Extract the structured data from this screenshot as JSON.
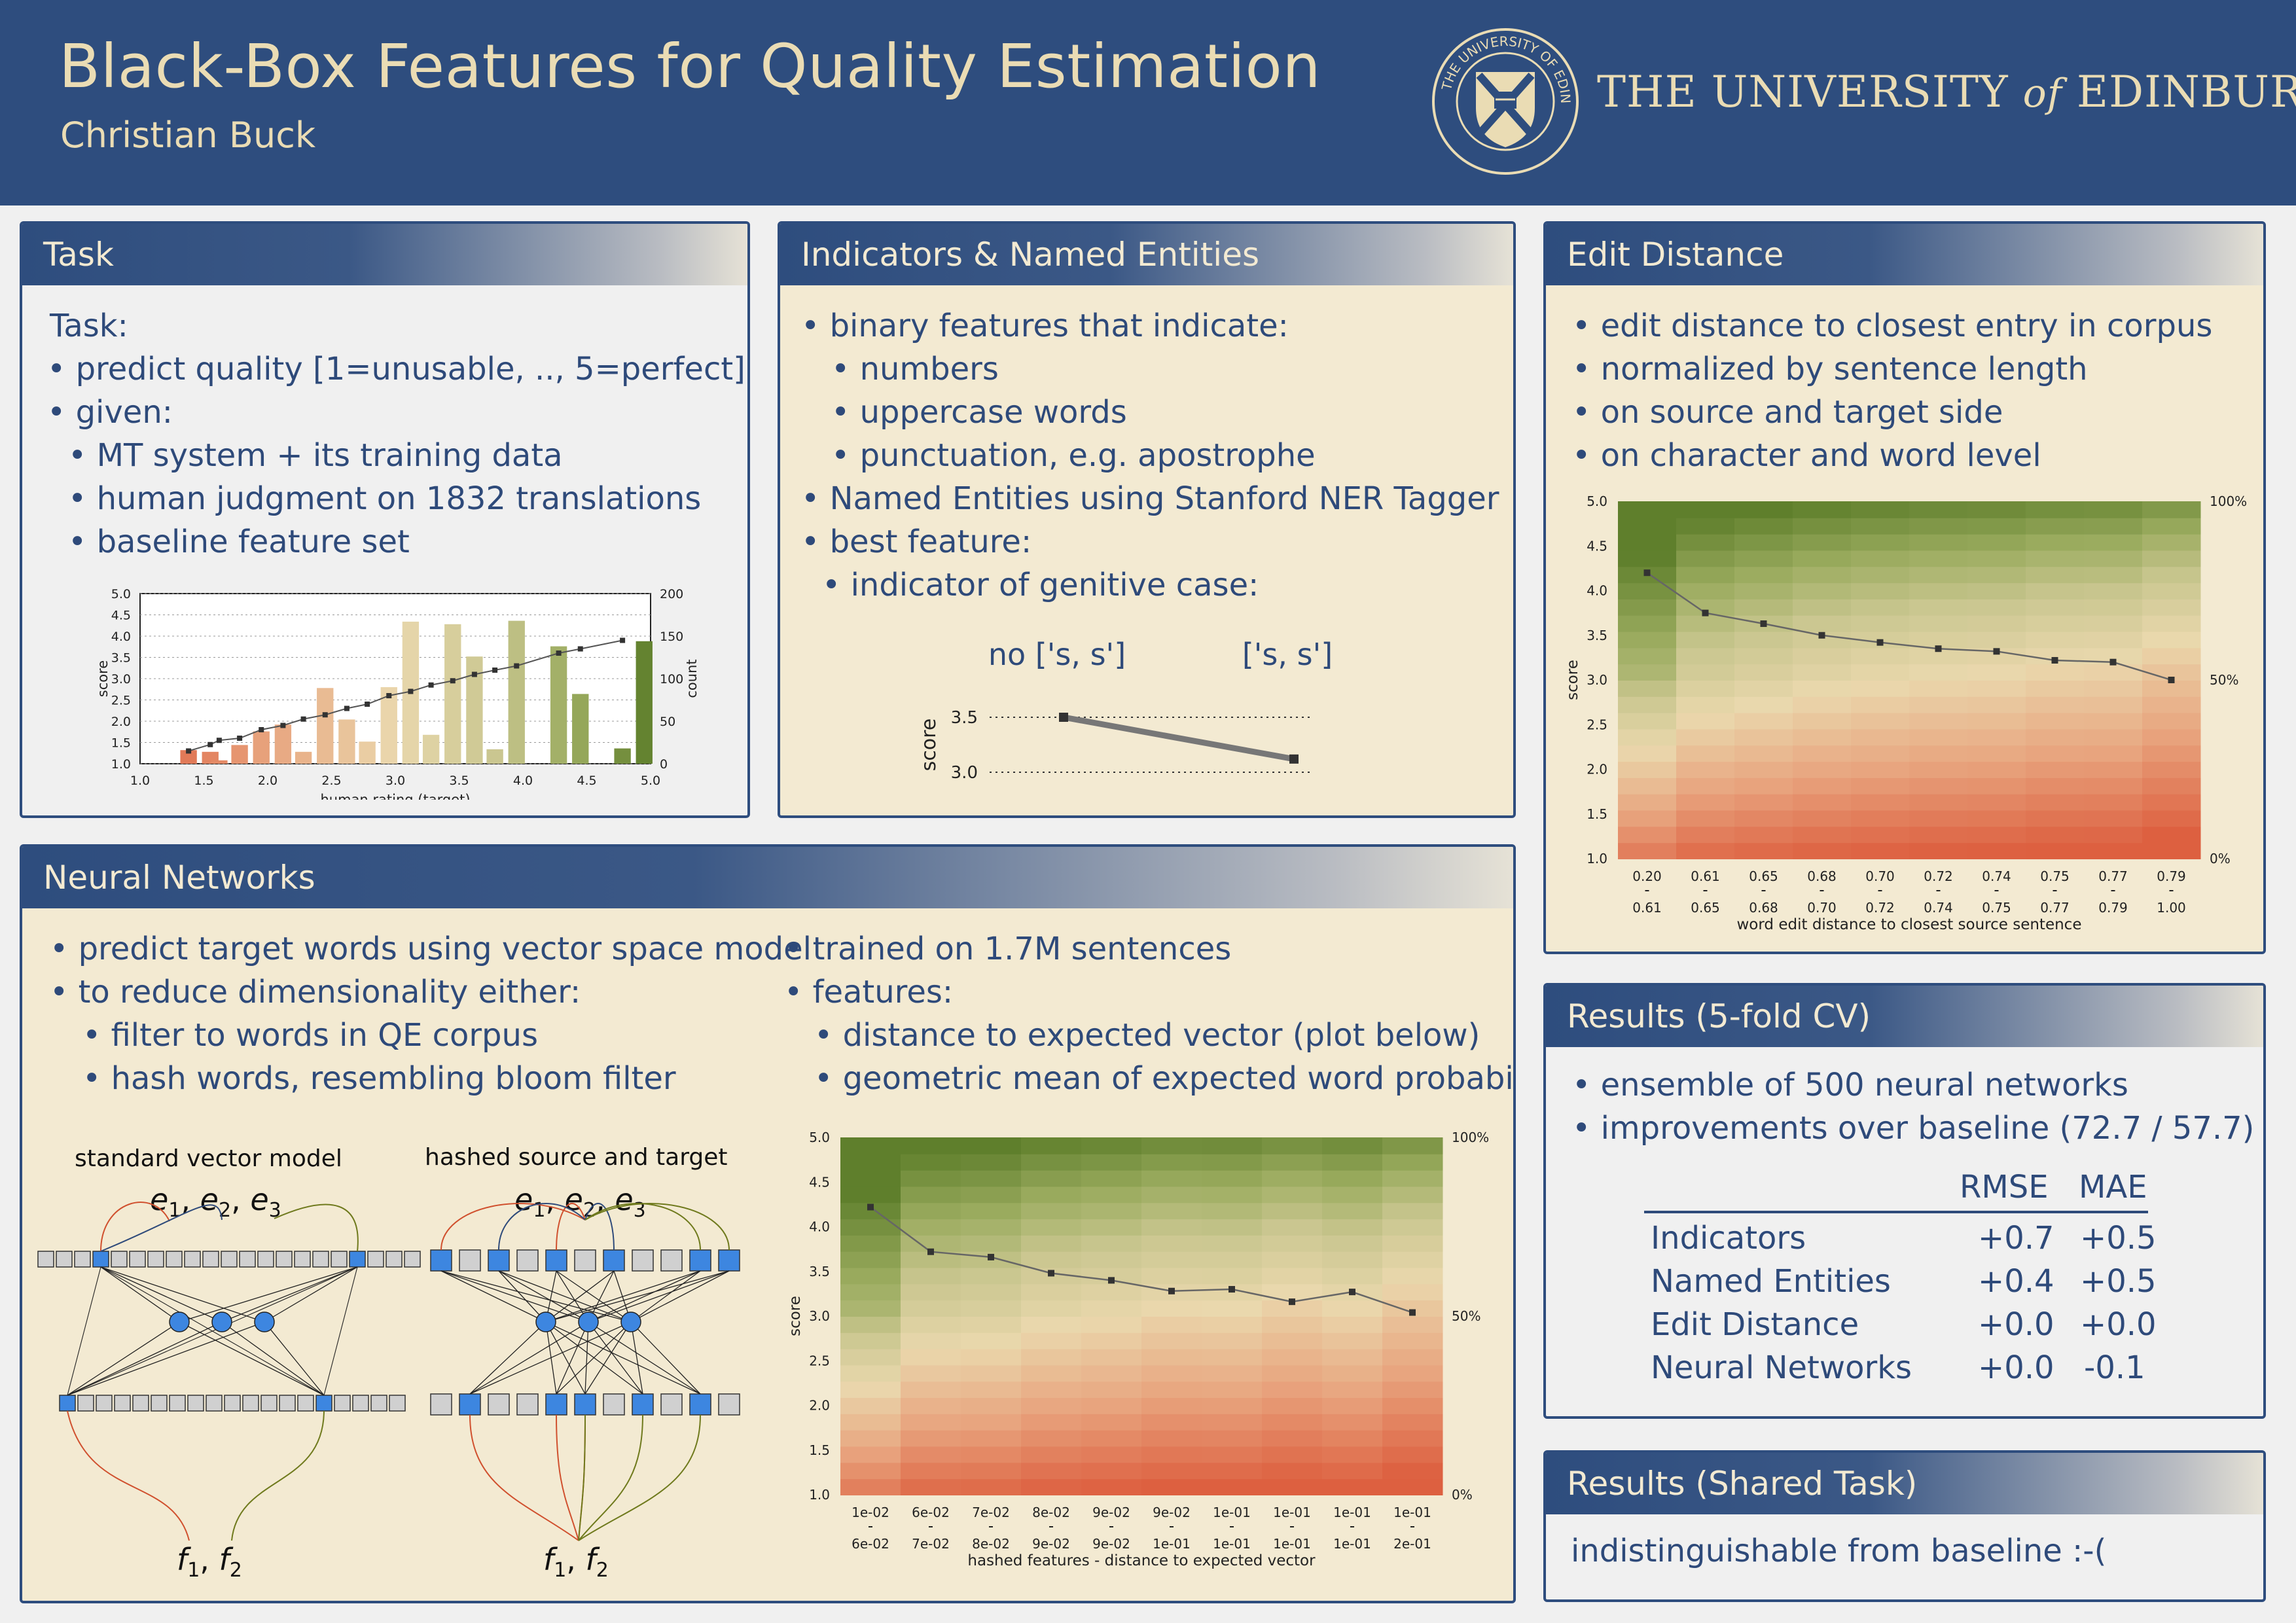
{
  "header": {
    "title": "Black-Box Features for Quality Estimation",
    "author": "Christian Buck",
    "university": "THE UNIVERSITY",
    "university_of": "of",
    "university_name": "EDINBURGH"
  },
  "colors": {
    "header_bg": "#2e4d7e",
    "header_text": "#eadcb4",
    "panel_tan": "#f3ead2",
    "text": "#2e4a7a"
  },
  "task": {
    "heading": "Task",
    "lines": [
      "Task:",
      "• predict quality [1=unusable, .., 5=perfect]",
      "• given:",
      "• MT system + its training data",
      "• human judgment on 1832 translations",
      "• baseline feature set"
    ]
  },
  "indicators": {
    "heading": "Indicators & Named Entities",
    "lines": [
      "• binary features that indicate:",
      "• numbers",
      "• uppercase words",
      "• punctuation, e.g. apostrophe",
      "• Named Entities using Stanford NER Tagger",
      "• best feature:",
      "• indicator of genitive case:"
    ]
  },
  "edit": {
    "heading": "Edit Distance",
    "lines": [
      "• edit distance to closest  entry in corpus",
      "• normalized by sentence length",
      "• on source and target side",
      "• on character and word level"
    ]
  },
  "nn": {
    "heading": "Neural Networks",
    "left_lines": [
      "• predict target words using vector space model",
      "• to reduce dimensionality either:",
      "• filter to words in QE corpus",
      "• hash words, resembling bloom filter"
    ],
    "right_lines": [
      "• trained on 1.7M sentences",
      "• features:",
      "• distance to expected vector (plot below)",
      "• geometric mean of expected word probabilities"
    ],
    "diagram_left_title": "standard vector model",
    "diagram_right_title": "hashed source and target",
    "e_label": "e",
    "f_label": "f",
    "sub1": "1",
    "sub2": "2",
    "sub3": "3",
    "comma": ", "
  },
  "results_cv": {
    "heading": "Results (5-fold CV)",
    "lines": [
      "• ensemble of 500 neural networks",
      "• improvements over baseline (72.7 / 57.7)"
    ],
    "col_rmse": "RMSE",
    "col_mae": "MAE",
    "rows": [
      {
        "name": "Indicators",
        "rmse": "+0.7",
        "mae": "+0.5"
      },
      {
        "name": "Named Entities",
        "rmse": "+0.4",
        "mae": "+0.5"
      },
      {
        "name": "Edit Distance",
        "rmse": "+0.0",
        "mae": "+0.0"
      },
      {
        "name": "Neural Networks",
        "rmse": "+0.0",
        "mae": "-0.1"
      }
    ]
  },
  "results_shared": {
    "heading": "Results (Shared Task)",
    "text": "indistinguishable from baseline :-("
  },
  "chart_data": [
    {
      "id": "task",
      "type": "bar",
      "xlabel": "human rating (target)",
      "ylabel": "score",
      "y2label": "count",
      "ylim": [
        1.0,
        5.0
      ],
      "y2lim": [
        0,
        200
      ],
      "xlim": [
        1.0,
        5.0
      ],
      "xticks": [
        "1.0",
        "1.5",
        "2.0",
        "2.5",
        "3.0",
        "3.5",
        "4.0",
        "4.5",
        "5.0"
      ],
      "yticks": [
        "1.0",
        "1.5",
        "2.0",
        "2.5",
        "3.0",
        "3.5",
        "4.0",
        "4.5",
        "5.0"
      ],
      "y2ticks": [
        "0",
        "50",
        "100",
        "150",
        "200"
      ],
      "bars": {
        "x": [
          1.38,
          1.55,
          1.62,
          1.78,
          1.95,
          2.12,
          2.28,
          2.45,
          2.62,
          2.78,
          2.95,
          3.12,
          3.28,
          3.45,
          3.62,
          3.78,
          3.95,
          4.28,
          4.45,
          4.78,
          4.95
        ],
        "count": [
          16,
          14,
          4,
          22,
          38,
          46,
          14,
          89,
          52,
          26,
          90,
          167,
          34,
          164,
          126,
          17,
          168,
          138,
          82,
          18,
          144
        ]
      },
      "line": {
        "x": [
          1.38,
          1.55,
          1.62,
          1.78,
          1.95,
          2.12,
          2.28,
          2.45,
          2.62,
          2.78,
          2.95,
          3.12,
          3.28,
          3.45,
          3.62,
          3.78,
          3.95,
          4.28,
          4.45,
          4.78
        ],
        "y": [
          1.3,
          1.45,
          1.55,
          1.6,
          1.8,
          1.9,
          2.05,
          2.15,
          2.3,
          2.4,
          2.6,
          2.7,
          2.85,
          2.95,
          3.1,
          3.2,
          3.3,
          3.6,
          3.7,
          3.9
        ]
      }
    },
    {
      "id": "genitive",
      "type": "line",
      "categories": [
        "no ['s, s']",
        "['s, s']"
      ],
      "values": [
        3.5,
        3.12
      ],
      "ylabel": "score",
      "yticks": [
        "3.5",
        "3.0"
      ],
      "ylim": [
        3.0,
        3.5
      ]
    },
    {
      "id": "edit",
      "type": "area",
      "ylabel": "score",
      "xlabel": "word edit distance to closest source sentence",
      "ylim": [
        1.0,
        5.0
      ],
      "yticks": [
        "1.0",
        "1.5",
        "2.0",
        "2.5",
        "3.0",
        "3.5",
        "4.0",
        "4.5",
        "5.0"
      ],
      "y2ticks": [
        "0%",
        "50%",
        "100%"
      ],
      "bins_top": [
        "0.20",
        "0.61",
        "0.65",
        "0.68",
        "0.70",
        "0.72",
        "0.74",
        "0.75",
        "0.77",
        "0.79"
      ],
      "bins_bottom": [
        "0.61",
        "0.65",
        "0.68",
        "0.70",
        "0.72",
        "0.74",
        "0.75",
        "0.77",
        "0.79",
        "1.00"
      ],
      "mean": [
        4.2,
        3.75,
        3.63,
        3.5,
        3.42,
        3.35,
        3.32,
        3.22,
        3.2,
        3.0
      ]
    },
    {
      "id": "nn",
      "type": "area",
      "ylabel": "score",
      "xlabel": "hashed features - distance to expected vector",
      "ylim": [
        1.0,
        5.0
      ],
      "yticks": [
        "1.0",
        "1.5",
        "2.0",
        "2.5",
        "3.0",
        "3.5",
        "4.0",
        "4.5",
        "5.0"
      ],
      "y2ticks": [
        "0%",
        "50%",
        "100%"
      ],
      "bins_top": [
        "1e-02",
        "6e-02",
        "7e-02",
        "8e-02",
        "9e-02",
        "9e-02",
        "1e-01",
        "1e-01",
        "1e-01",
        "1e-01"
      ],
      "bins_bottom": [
        "6e-02",
        "7e-02",
        "8e-02",
        "9e-02",
        "9e-02",
        "1e-01",
        "1e-01",
        "1e-01",
        "1e-01",
        "2e-01"
      ],
      "mean": [
        4.22,
        3.72,
        3.66,
        3.48,
        3.4,
        3.28,
        3.3,
        3.16,
        3.27,
        3.04
      ]
    }
  ]
}
